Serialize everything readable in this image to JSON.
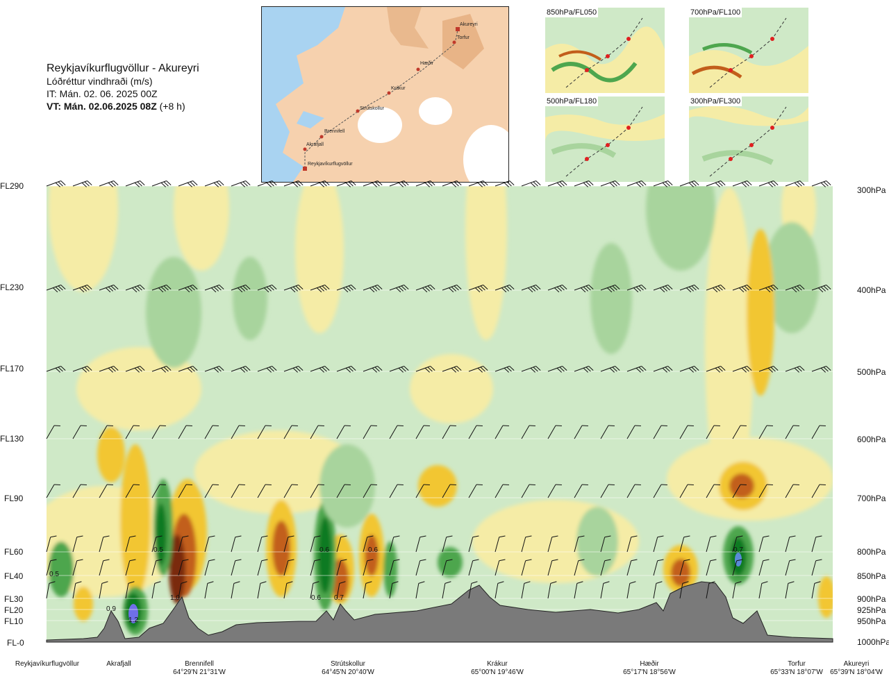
{
  "header": {
    "route": "Reykjavíkurflugvöllur - Akureyri",
    "subtitle": "Lóðréttur vindhraði (m/s)",
    "issue_time": "IT: Mán. 02. 06. 2025 00Z",
    "valid_time": "VT: Mán. 02.06.2025 08Z",
    "lead": "(+8 h)"
  },
  "map": {
    "stations": [
      "Akureyri",
      "Torfur",
      "Hæðir",
      "Krákur",
      "Strútskollur",
      "Brennifell",
      "Akrafjall",
      "Reykjavíkurflugvöllur"
    ]
  },
  "thumbnails": [
    {
      "label": "850hPa/FL050"
    },
    {
      "label": "700hPa/FL100"
    },
    {
      "label": "500hPa/FL180"
    },
    {
      "label": "300hPa/FL300"
    }
  ],
  "chart_data": {
    "type": "heatmap",
    "title": "Lóðréttur vindhraði (m/s)",
    "left_axis_labels": [
      "FL290",
      "FL230",
      "FL170",
      "FL130",
      "FL90",
      "FL60",
      "FL40",
      "FL30",
      "FL20",
      "FL10",
      "FL-0"
    ],
    "right_axis_labels": [
      "300hPa",
      "400hPa",
      "500hPa",
      "600hPa",
      "700hPa",
      "800hPa",
      "850hPa",
      "900hPa",
      "925hPa",
      "950hPa",
      "1000hPa"
    ],
    "pressure_levels_hpa": [
      300,
      400,
      500,
      600,
      700,
      800,
      850,
      900,
      925,
      950,
      1000
    ],
    "waypoints": [
      {
        "name": "Reykjavíkurflugvöllur",
        "coord": ""
      },
      {
        "name": "Akrafjall",
        "coord": ""
      },
      {
        "name": "Brennifell",
        "coord": "64°29'N 21°31'W"
      },
      {
        "name": "Strútskollur",
        "coord": "64°45'N 20°40'W"
      },
      {
        "name": "Krákur",
        "coord": "65°00'N 19°46'W"
      },
      {
        "name": "Hæðir",
        "coord": "65°17'N 18°56'W"
      },
      {
        "name": "Torfur",
        "coord": "65°33'N 18°07'W"
      },
      {
        "name": "Akureyri",
        "coord": "65°39'N 18°04'W"
      }
    ],
    "annotations": [
      "0.5",
      "0.9",
      "1.2",
      "0.5",
      "1.0",
      "0.6",
      "0.6",
      "0.7",
      "0.6",
      "0.7"
    ]
  },
  "colors": {
    "strong_down": "#7a2a0e",
    "down": "#c25e1b",
    "weak_down": "#f2c630",
    "very_weak_down": "#f5eca6",
    "neutral": "#cfe9c7",
    "weak_up": "#a8d49d",
    "up": "#4ea64e",
    "strong_up": "#0d7a21",
    "extreme_up": "#6f6fe8",
    "terrain": "#7a7a7a"
  }
}
